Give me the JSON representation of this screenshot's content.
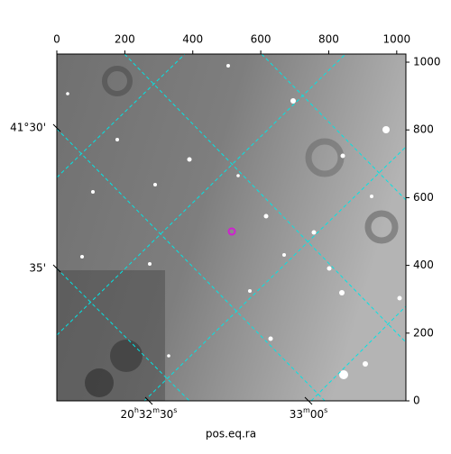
{
  "chart_data": {
    "type": "image",
    "xlabel": "pos.eq.ra",
    "xlim": [
      0,
      1027
    ],
    "xticks": [
      0,
      200,
      400,
      600,
      800,
      1000
    ],
    "ylim": [
      0,
      1024
    ],
    "yticks": [
      0,
      200,
      400,
      600,
      800,
      1000
    ],
    "ra_tick_labels": [
      "20h32m30s",
      "33m00s"
    ],
    "dec_tick_labels": [
      "41°30'",
      "35'"
    ],
    "grid_color": "#00e5e5"
  }
}
